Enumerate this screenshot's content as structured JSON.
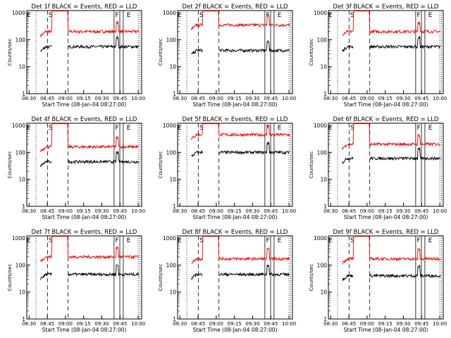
{
  "chart_data": {
    "type": "line",
    "yscale": "log",
    "ylim": [
      1,
      1200
    ],
    "ylabel": "Counts/sec",
    "xlabel": "Start Time (08-Jan-04 08:27:00)",
    "xticks": [
      "08:30",
      "08:45",
      "09:00",
      "09:15",
      "09:30",
      "09:45",
      "10:00"
    ],
    "yticks": [
      "1",
      "10",
      "100",
      "1000"
    ],
    "series_colors": {
      "events": "#000000",
      "lld": "#ff0000"
    },
    "marker_labels": {
      "E": "E",
      "S": "S",
      "F": "F"
    },
    "panels": [
      {
        "title": "Det 1f BLACK = Events, RED = LLD",
        "lld": 200,
        "events": 55
      },
      {
        "title": "Det 2f BLACK = Events, RED = LLD",
        "lld": 350,
        "events": 40
      },
      {
        "title": "Det 3f BLACK = Events, RED = LLD",
        "lld": 200,
        "events": 55
      },
      {
        "title": "Det 4f BLACK = Events, RED = LLD",
        "lld": 160,
        "events": 45
      },
      {
        "title": "Det 5f BLACK = Events, RED = LLD",
        "lld": 450,
        "events": 100
      },
      {
        "title": "Det 6f BLACK = Events, RED = LLD",
        "lld": 200,
        "events": 60
      },
      {
        "title": "Det 7f BLACK = Events, RED = LLD",
        "lld": 200,
        "events": 45
      },
      {
        "title": "Det 8f BLACK = Events, RED = LLD",
        "lld": 170,
        "events": 45
      },
      {
        "title": "Det 9f BLACK = Events, RED = LLD",
        "lld": 170,
        "events": 40
      }
    ]
  }
}
